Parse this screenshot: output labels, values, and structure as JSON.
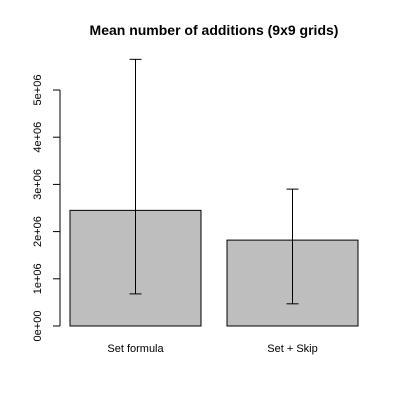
{
  "chart_data": {
    "type": "bar",
    "title": "Mean number of additions (9x9 grids)",
    "categories": [
      "Set formula",
      "Set + Skip"
    ],
    "values": [
      2450000,
      1820000
    ],
    "error_bars": [
      {
        "low": 680000,
        "high": 5650000
      },
      {
        "low": 470000,
        "high": 2900000
      }
    ],
    "xlabel": "",
    "ylabel": "",
    "ylim": [
      0,
      5000000
    ],
    "yticks": [
      0,
      1000000,
      2000000,
      3000000,
      4000000,
      5000000
    ],
    "ytick_labels": [
      "0e+00",
      "1e+06",
      "2e+06",
      "3e+06",
      "4e+06",
      "5e+06"
    ],
    "bar_color": "#bebebe",
    "grid": false,
    "legend": "none"
  }
}
